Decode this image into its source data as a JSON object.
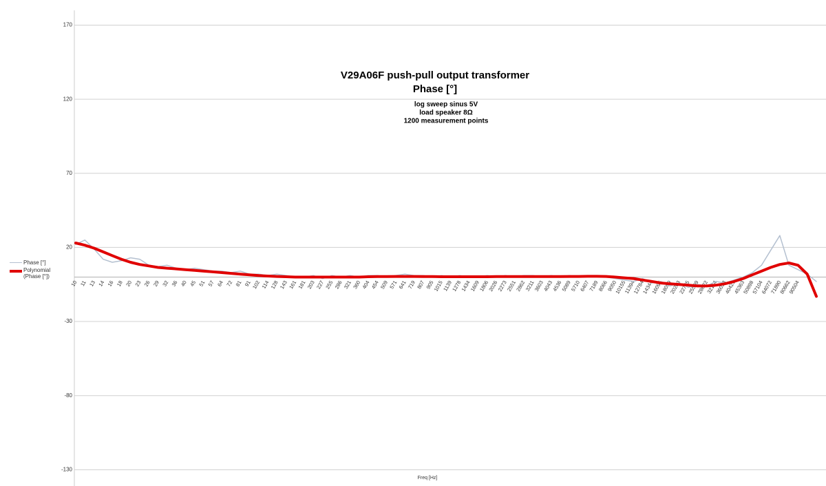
{
  "chart_data": {
    "type": "line",
    "title": "V29A06F push-pull output transformer",
    "subtitle": "Phase [°]",
    "annotations": [
      "log sweep sinus 5V",
      "load speaker 8Ω",
      "1200 measurement points"
    ],
    "x_label": "Freq [Hz]",
    "categories": [
      "10",
      "11",
      "13",
      "14",
      "16",
      "18",
      "20",
      "23",
      "26",
      "29",
      "32",
      "36",
      "40",
      "45",
      "51",
      "57",
      "64",
      "72",
      "81",
      "91",
      "102",
      "114",
      "128",
      "143",
      "161",
      "181",
      "203",
      "227",
      "255",
      "286",
      "321",
      "360",
      "404",
      "454",
      "509",
      "571",
      "641",
      "719",
      "807",
      "905",
      "1015",
      "1139",
      "1278",
      "1434",
      "1609",
      "1806",
      "2026",
      "2273",
      "2551",
      "2862",
      "3211",
      "3603",
      "4043",
      "4536",
      "5089",
      "5710",
      "6407",
      "7189",
      "8066",
      "9050",
      "10155",
      "11394",
      "12784",
      "14344",
      "16095",
      "18059",
      "20263",
      "22735",
      "25509",
      "28622",
      "32114",
      "36033",
      "40429",
      "45363",
      "50898",
      "57104",
      "64072",
      "71890",
      "80662",
      "90504",
      null,
      null
    ],
    "series": [
      {
        "name": "Phase [°]",
        "color": "#b4c0d0",
        "width": 1.5,
        "values": [
          22,
          25,
          19,
          12,
          10,
          11,
          13,
          12,
          8,
          7,
          8,
          6,
          5,
          6,
          5,
          4,
          4,
          3,
          4,
          2,
          2,
          1,
          2,
          1,
          0,
          0,
          1,
          -1,
          1,
          0,
          1,
          0,
          1,
          1,
          0,
          1,
          2,
          1,
          1,
          0,
          1,
          0,
          1,
          0,
          0,
          1,
          0,
          1,
          0,
          1,
          1,
          0,
          1,
          0,
          1,
          0,
          1,
          1,
          0,
          -1,
          -2,
          -3,
          -1,
          -4,
          -3,
          -6,
          -4,
          -7,
          -5,
          -6,
          -3,
          -4,
          -2,
          0,
          3,
          8,
          18,
          28,
          8,
          5,
          2,
          -3
        ]
      },
      {
        "name": "Polynomial (Phase [°])",
        "color": "#e00000",
        "width": 4,
        "values": [
          23,
          21.5,
          19.5,
          17,
          14.5,
          12,
          10,
          8.5,
          7.5,
          6.5,
          6,
          5.5,
          5,
          4.5,
          4,
          3.5,
          3,
          2.5,
          2,
          1.5,
          1,
          0.7,
          0.4,
          0.2,
          0,
          0,
          0,
          0,
          0,
          0,
          0,
          0,
          0.2,
          0.3,
          0.3,
          0.4,
          0.4,
          0.4,
          0.3,
          0.3,
          0.2,
          0.2,
          0.2,
          0.2,
          0.2,
          0.2,
          0.3,
          0.3,
          0.3,
          0.3,
          0.3,
          0.3,
          0.3,
          0.3,
          0.4,
          0.4,
          0.5,
          0.5,
          0.4,
          0,
          -0.5,
          -1,
          -2,
          -3,
          -4,
          -4.5,
          -5,
          -5.5,
          -6,
          -6,
          -5.5,
          -4.5,
          -3,
          -1,
          1.5,
          4,
          6.5,
          8.5,
          9.5,
          8,
          2,
          -13
        ]
      }
    ],
    "ylim": [
      -141,
      180
    ],
    "yticks": [
      -130,
      -80,
      -30,
      20,
      70,
      120,
      170
    ],
    "grid": true
  }
}
